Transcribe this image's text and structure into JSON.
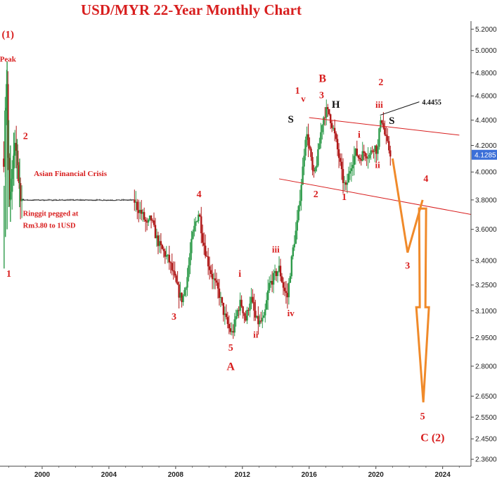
{
  "chart_data": {
    "type": "candlestick",
    "title": "USD/MYR 22-Year Monthly Chart",
    "y_ticks": [
      "5.2000",
      "5.0000",
      "4.8000",
      "4.6000",
      "4.4000",
      "4.2000",
      "4.0000",
      "3.8000",
      "3.6000",
      "3.4000",
      "3.2500",
      "3.1000",
      "2.9500",
      "2.8000",
      "2.6500",
      "2.5500",
      "2.4500",
      "2.3600"
    ],
    "y_scale": "log",
    "ylim": [
      2.33,
      5.25
    ],
    "x_ticks": [
      "2000",
      "2004",
      "2008",
      "2012",
      "2016",
      "2020",
      "2024"
    ],
    "x_tick_years": [
      2000,
      2004,
      2008,
      2012,
      2016,
      2020,
      2024
    ],
    "xlim": [
      1997.6,
      2025.7
    ],
    "last_price": "4.1285",
    "last_price_color": "#3b6fd8",
    "up_color": "#2e9b4a",
    "down_color": "#b01818",
    "projection_color": "#f08a2a",
    "series_path": [
      [
        1997.7,
        4.1
      ],
      [
        1997.85,
        4.85
      ],
      [
        1997.95,
        4.1
      ],
      [
        1998.05,
        3.7
      ],
      [
        1998.2,
        4.0
      ],
      [
        1998.4,
        4.2
      ],
      [
        1998.55,
        4.05
      ],
      [
        1998.7,
        3.8
      ],
      [
        1998.8,
        3.8
      ],
      [
        2005.5,
        3.8
      ],
      [
        2005.7,
        3.75
      ],
      [
        2006.0,
        3.7
      ],
      [
        2006.3,
        3.62
      ],
      [
        2006.5,
        3.68
      ],
      [
        2006.8,
        3.56
      ],
      [
        2007.0,
        3.5
      ],
      [
        2007.3,
        3.45
      ],
      [
        2007.6,
        3.4
      ],
      [
        2007.9,
        3.3
      ],
      [
        2008.2,
        3.2
      ],
      [
        2008.4,
        3.16
      ],
      [
        2008.7,
        3.3
      ],
      [
        2009.0,
        3.55
      ],
      [
        2009.2,
        3.65
      ],
      [
        2009.4,
        3.72
      ],
      [
        2009.6,
        3.55
      ],
      [
        2009.9,
        3.4
      ],
      [
        2010.2,
        3.3
      ],
      [
        2010.6,
        3.2
      ],
      [
        2010.9,
        3.08
      ],
      [
        2011.2,
        3.0
      ],
      [
        2011.4,
        2.97
      ],
      [
        2011.7,
        3.1
      ],
      [
        2011.9,
        3.15
      ],
      [
        2012.2,
        3.05
      ],
      [
        2012.5,
        3.18
      ],
      [
        2012.8,
        3.05
      ],
      [
        2013.0,
        3.03
      ],
      [
        2013.3,
        3.05
      ],
      [
        2013.6,
        3.25
      ],
      [
        2013.9,
        3.3
      ],
      [
        2014.2,
        3.35
      ],
      [
        2014.5,
        3.22
      ],
      [
        2014.7,
        3.18
      ],
      [
        2015.0,
        3.45
      ],
      [
        2015.3,
        3.65
      ],
      [
        2015.6,
        4.0
      ],
      [
        2015.8,
        4.3
      ],
      [
        2016.0,
        4.2
      ],
      [
        2016.25,
        3.95
      ],
      [
        2016.5,
        4.1
      ],
      [
        2016.8,
        4.4
      ],
      [
        2017.0,
        4.48
      ],
      [
        2017.2,
        4.45
      ],
      [
        2017.5,
        4.3
      ],
      [
        2017.8,
        4.1
      ],
      [
        2018.0,
        3.95
      ],
      [
        2018.2,
        3.88
      ],
      [
        2018.5,
        4.05
      ],
      [
        2018.8,
        4.15
      ],
      [
        2019.0,
        4.1
      ],
      [
        2019.3,
        4.15
      ],
      [
        2019.6,
        4.12
      ],
      [
        2019.9,
        4.2
      ],
      [
        2020.1,
        4.15
      ],
      [
        2020.3,
        4.45
      ],
      [
        2020.5,
        4.3
      ],
      [
        2020.7,
        4.2
      ],
      [
        2020.9,
        4.13
      ]
    ],
    "drop_bars": [
      [
        1997.72,
        3.35,
        3.9
      ],
      [
        1997.8,
        3.55,
        4.5
      ],
      [
        1997.9,
        3.6,
        4.9
      ],
      [
        1998.0,
        3.75,
        4.4
      ],
      [
        1998.1,
        3.65,
        4.2
      ],
      [
        1998.3,
        3.9,
        4.3
      ],
      [
        1998.5,
        3.95,
        4.25
      ],
      [
        1998.65,
        3.75,
        4.1
      ]
    ],
    "channels": [
      {
        "from": [
          2016.0,
          4.42
        ],
        "to": [
          2025.0,
          4.28
        ],
        "color": "#d81e1e"
      },
      {
        "from": [
          2014.2,
          3.95
        ],
        "to": [
          2025.7,
          3.7
        ],
        "color": "#d81e1e"
      }
    ],
    "callout": {
      "label": "4.4455",
      "from": [
        2020.25,
        4.44
      ],
      "to": [
        2022.6,
        4.55
      ]
    },
    "projection": [
      [
        2021.0,
        4.1
      ],
      [
        2021.9,
        3.45
      ],
      [
        2022.8,
        3.8
      ]
    ],
    "projection_arrow": {
      "x": 2022.8,
      "top": 3.74,
      "bottom": 2.62
    },
    "wave_labels": [
      {
        "text": "(1)",
        "x": 1997.95,
        "y": 5.12,
        "size": 15,
        "color": "red"
      },
      {
        "text": "Peak",
        "x": 1997.95,
        "y": 4.9,
        "size": 11,
        "color": "red"
      },
      {
        "text": "1",
        "x": 1998.0,
        "y": 3.3,
        "size": 14,
        "color": "red"
      },
      {
        "text": "2",
        "x": 1999.0,
        "y": 4.25,
        "size": 14,
        "color": "red"
      },
      {
        "text": "3",
        "x": 2007.9,
        "y": 3.05,
        "size": 14,
        "color": "red"
      },
      {
        "text": "4",
        "x": 2009.4,
        "y": 3.82,
        "size": 14,
        "color": "red"
      },
      {
        "text": "5",
        "x": 2011.3,
        "y": 2.88,
        "size": 14,
        "color": "red"
      },
      {
        "text": "A",
        "x": 2011.3,
        "y": 2.78,
        "size": 16,
        "color": "red"
      },
      {
        "text": "i",
        "x": 2011.85,
        "y": 3.3,
        "size": 14,
        "color": "red"
      },
      {
        "text": "ii",
        "x": 2012.8,
        "y": 2.95,
        "size": 13,
        "color": "red"
      },
      {
        "text": "iii",
        "x": 2014.0,
        "y": 3.45,
        "size": 13,
        "color": "red"
      },
      {
        "text": "iv",
        "x": 2014.9,
        "y": 3.07,
        "size": 13,
        "color": "red"
      },
      {
        "text": "1",
        "x": 2015.3,
        "y": 4.62,
        "size": 14,
        "color": "red"
      },
      {
        "text": "v",
        "x": 2015.65,
        "y": 4.55,
        "size": 13,
        "color": "red"
      },
      {
        "text": "S",
        "x": 2014.9,
        "y": 4.38,
        "size": 15,
        "color": "black"
      },
      {
        "text": "2",
        "x": 2016.4,
        "y": 3.82,
        "size": 14,
        "color": "red"
      },
      {
        "text": "B",
        "x": 2016.8,
        "y": 4.72,
        "size": 16,
        "color": "red"
      },
      {
        "text": "3",
        "x": 2016.75,
        "y": 4.58,
        "size": 14,
        "color": "red"
      },
      {
        "text": "H",
        "x": 2017.6,
        "y": 4.5,
        "size": 15,
        "color": "black"
      },
      {
        "text": "1",
        "x": 2018.1,
        "y": 3.8,
        "size": 14,
        "color": "red"
      },
      {
        "text": "i",
        "x": 2019.0,
        "y": 4.26,
        "size": 14,
        "color": "red"
      },
      {
        "text": "ii",
        "x": 2020.1,
        "y": 4.03,
        "size": 13,
        "color": "red"
      },
      {
        "text": "iii",
        "x": 2020.2,
        "y": 4.5,
        "size": 13,
        "color": "red"
      },
      {
        "text": "2",
        "x": 2020.3,
        "y": 4.69,
        "size": 14,
        "color": "red"
      },
      {
        "text": "S",
        "x": 2020.95,
        "y": 4.37,
        "size": 15,
        "color": "black"
      },
      {
        "text": "4",
        "x": 2023.0,
        "y": 3.93,
        "size": 14,
        "color": "red"
      },
      {
        "text": "3",
        "x": 2021.9,
        "y": 3.35,
        "size": 14,
        "color": "red"
      },
      {
        "text": "5",
        "x": 2022.8,
        "y": 2.54,
        "size": 14,
        "color": "red"
      },
      {
        "text": "C  (2)",
        "x": 2023.4,
        "y": 2.44,
        "size": 16,
        "color": "red"
      }
    ],
    "annotations": [
      {
        "text": "Asian Financial Crisis",
        "x": 1999.5,
        "y": 3.97,
        "size": 11
      },
      {
        "text": "Ringgit pegged at",
        "x": 1998.85,
        "y": 3.69,
        "size": 10.5
      },
      {
        "text": "Rm3.80 to 1USD",
        "x": 1998.85,
        "y": 3.61,
        "size": 10.5
      }
    ]
  }
}
